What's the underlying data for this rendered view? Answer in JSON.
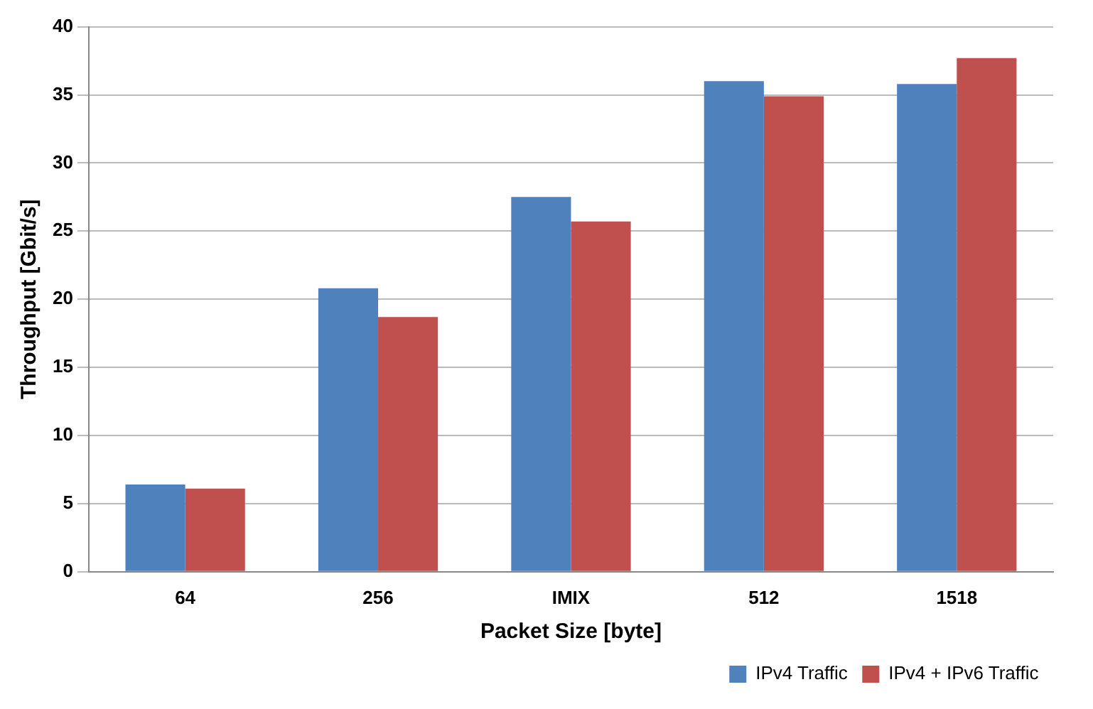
{
  "chart_data": {
    "type": "bar",
    "xlabel": "Packet Size [byte]",
    "ylabel": "Throughput [Gbit/s]",
    "categories": [
      "64",
      "256",
      "IMIX",
      "512",
      "1518"
    ],
    "series": [
      {
        "name": "IPv4 Traffic",
        "color": "#4f81bd",
        "values": [
          6.4,
          20.8,
          27.5,
          36.0,
          35.8
        ]
      },
      {
        "name": "IPv4 + IPv6 Traffic",
        "color": "#c0504d",
        "values": [
          6.1,
          18.7,
          25.7,
          34.9,
          37.7
        ]
      }
    ],
    "ylim": [
      0,
      40
    ],
    "yticks": [
      0,
      5,
      10,
      15,
      20,
      25,
      30,
      35,
      40
    ],
    "grid": "y",
    "legend": "bottom right"
  }
}
